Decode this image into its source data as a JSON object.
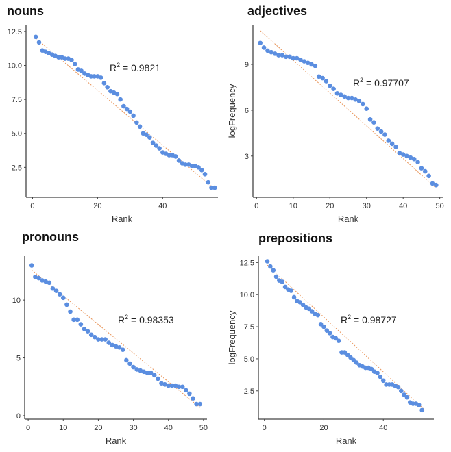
{
  "chart_data": [
    {
      "type": "scatter",
      "title": "nouns",
      "xlabel": "Rank",
      "ylabel": "",
      "xlim": [
        -2,
        57
      ],
      "ylim": [
        0.3,
        13.0
      ],
      "xticks": [
        0,
        20,
        40
      ],
      "yticks": [
        "2.5",
        "5.0",
        "7.5",
        "10.0",
        "12.5"
      ],
      "annotation": {
        "text_base": "R",
        "sup": "2",
        "text_rest": " = 0.9821"
      },
      "trend": {
        "x0": 1,
        "y0": 12.0,
        "x1": 56,
        "y1": 0.9
      },
      "points": [
        [
          1,
          12.1
        ],
        [
          2,
          11.7
        ],
        [
          3,
          11.1
        ],
        [
          4,
          11.0
        ],
        [
          5,
          10.9
        ],
        [
          6,
          10.8
        ],
        [
          7,
          10.7
        ],
        [
          8,
          10.6
        ],
        [
          9,
          10.6
        ],
        [
          10,
          10.5
        ],
        [
          11,
          10.5
        ],
        [
          12,
          10.4
        ],
        [
          13,
          10.1
        ],
        [
          14,
          9.7
        ],
        [
          15,
          9.6
        ],
        [
          16,
          9.4
        ],
        [
          17,
          9.3
        ],
        [
          18,
          9.2
        ],
        [
          19,
          9.2
        ],
        [
          20,
          9.2
        ],
        [
          21,
          9.1
        ],
        [
          22,
          8.7
        ],
        [
          23,
          8.4
        ],
        [
          24,
          8.1
        ],
        [
          25,
          8.0
        ],
        [
          26,
          7.9
        ],
        [
          27,
          7.5
        ],
        [
          28,
          7.0
        ],
        [
          29,
          6.8
        ],
        [
          30,
          6.6
        ],
        [
          31,
          6.3
        ],
        [
          32,
          5.8
        ],
        [
          33,
          5.5
        ],
        [
          34,
          5.0
        ],
        [
          35,
          4.9
        ],
        [
          36,
          4.7
        ],
        [
          37,
          4.3
        ],
        [
          38,
          4.1
        ],
        [
          39,
          3.9
        ],
        [
          40,
          3.6
        ],
        [
          41,
          3.5
        ],
        [
          42,
          3.4
        ],
        [
          43,
          3.4
        ],
        [
          44,
          3.3
        ],
        [
          45,
          3.0
        ],
        [
          46,
          2.8
        ],
        [
          47,
          2.7
        ],
        [
          48,
          2.7
        ],
        [
          49,
          2.6
        ],
        [
          50,
          2.6
        ],
        [
          51,
          2.5
        ],
        [
          52,
          2.3
        ],
        [
          53,
          2.0
        ],
        [
          54,
          1.4
        ],
        [
          55,
          1.0
        ],
        [
          56,
          1.0
        ]
      ]
    },
    {
      "type": "scatter",
      "title": "adjectives",
      "xlabel": "Rank",
      "ylabel": "logFrequency",
      "xlim": [
        -1,
        51
      ],
      "ylim": [
        0.3,
        11.6
      ],
      "xticks": [
        0,
        10,
        20,
        30,
        40,
        50
      ],
      "yticks": [
        "3",
        "6",
        "9"
      ],
      "annotation": {
        "text_base": "R",
        "sup": "2",
        "text_rest": " = 0.97707"
      },
      "trend": {
        "x0": 1,
        "y0": 11.2,
        "x1": 49,
        "y1": 0.9
      },
      "points": [
        [
          1,
          10.4
        ],
        [
          2,
          10.1
        ],
        [
          3,
          9.9
        ],
        [
          4,
          9.8
        ],
        [
          5,
          9.7
        ],
        [
          6,
          9.6
        ],
        [
          7,
          9.6
        ],
        [
          8,
          9.5
        ],
        [
          9,
          9.5
        ],
        [
          10,
          9.4
        ],
        [
          11,
          9.4
        ],
        [
          12,
          9.3
        ],
        [
          13,
          9.2
        ],
        [
          14,
          9.1
        ],
        [
          15,
          9.0
        ],
        [
          16,
          8.9
        ],
        [
          17,
          8.2
        ],
        [
          18,
          8.1
        ],
        [
          19,
          7.9
        ],
        [
          20,
          7.6
        ],
        [
          21,
          7.4
        ],
        [
          22,
          7.1
        ],
        [
          23,
          7.0
        ],
        [
          24,
          6.9
        ],
        [
          25,
          6.8
        ],
        [
          26,
          6.8
        ],
        [
          27,
          6.7
        ],
        [
          28,
          6.6
        ],
        [
          29,
          6.4
        ],
        [
          30,
          6.1
        ],
        [
          31,
          5.4
        ],
        [
          32,
          5.2
        ],
        [
          33,
          4.8
        ],
        [
          34,
          4.6
        ],
        [
          35,
          4.4
        ],
        [
          36,
          4.0
        ],
        [
          37,
          3.8
        ],
        [
          38,
          3.6
        ],
        [
          39,
          3.2
        ],
        [
          40,
          3.1
        ],
        [
          41,
          3.0
        ],
        [
          42,
          2.9
        ],
        [
          43,
          2.8
        ],
        [
          44,
          2.6
        ],
        [
          45,
          2.2
        ],
        [
          46,
          2.0
        ],
        [
          47,
          1.7
        ],
        [
          48,
          1.2
        ],
        [
          49,
          1.1
        ]
      ]
    },
    {
      "type": "scatter",
      "title": "pronouns",
      "xlabel": "Rank",
      "ylabel": "",
      "xlim": [
        -1,
        51
      ],
      "ylim": [
        -0.3,
        13.8
      ],
      "xticks": [
        0,
        10,
        20,
        30,
        40,
        50
      ],
      "yticks": [
        "0",
        "5",
        "10"
      ],
      "annotation": {
        "text_base": "R",
        "sup": "2",
        "text_rest": " = 0.98353"
      },
      "trend": {
        "x0": 1,
        "y0": 12.6,
        "x1": 49,
        "y1": 0.7
      },
      "points": [
        [
          1,
          13.0
        ],
        [
          2,
          12.0
        ],
        [
          3,
          11.9
        ],
        [
          4,
          11.7
        ],
        [
          5,
          11.6
        ],
        [
          6,
          11.5
        ],
        [
          7,
          11.0
        ],
        [
          8,
          10.8
        ],
        [
          9,
          10.5
        ],
        [
          10,
          10.2
        ],
        [
          11,
          9.6
        ],
        [
          12,
          9.0
        ],
        [
          13,
          8.3
        ],
        [
          14,
          8.3
        ],
        [
          15,
          7.9
        ],
        [
          16,
          7.5
        ],
        [
          17,
          7.3
        ],
        [
          18,
          7.0
        ],
        [
          19,
          6.8
        ],
        [
          20,
          6.6
        ],
        [
          21,
          6.6
        ],
        [
          22,
          6.6
        ],
        [
          23,
          6.3
        ],
        [
          24,
          6.1
        ],
        [
          25,
          6.0
        ],
        [
          26,
          5.9
        ],
        [
          27,
          5.7
        ],
        [
          28,
          4.8
        ],
        [
          29,
          4.5
        ],
        [
          30,
          4.2
        ],
        [
          31,
          4.0
        ],
        [
          32,
          3.9
        ],
        [
          33,
          3.8
        ],
        [
          34,
          3.7
        ],
        [
          35,
          3.7
        ],
        [
          36,
          3.5
        ],
        [
          37,
          3.2
        ],
        [
          38,
          2.8
        ],
        [
          39,
          2.7
        ],
        [
          40,
          2.6
        ],
        [
          41,
          2.6
        ],
        [
          42,
          2.6
        ],
        [
          43,
          2.5
        ],
        [
          44,
          2.5
        ],
        [
          45,
          2.2
        ],
        [
          46,
          1.9
        ],
        [
          47,
          1.5
        ],
        [
          48,
          1.0
        ],
        [
          49,
          1.0
        ]
      ]
    },
    {
      "type": "scatter",
      "title": "prepositions",
      "xlabel": "Rank",
      "ylabel": "logFrequency",
      "xlim": [
        -2,
        57
      ],
      "ylim": [
        0.3,
        13.0
      ],
      "xticks": [
        0,
        20,
        40
      ],
      "yticks": [
        "2.5",
        "5.0",
        "7.5",
        "10.0",
        "12.5"
      ],
      "annotation": {
        "text_base": "R",
        "sup": "2",
        "text_rest": " = 0.98727"
      },
      "trend": {
        "x0": 1,
        "y0": 12.3,
        "x1": 54,
        "y1": 1.0
      },
      "points": [
        [
          1,
          12.6
        ],
        [
          2,
          12.2
        ],
        [
          3,
          11.9
        ],
        [
          4,
          11.4
        ],
        [
          5,
          11.1
        ],
        [
          6,
          11.0
        ],
        [
          7,
          10.6
        ],
        [
          8,
          10.4
        ],
        [
          9,
          10.3
        ],
        [
          10,
          9.8
        ],
        [
          11,
          9.5
        ],
        [
          12,
          9.4
        ],
        [
          13,
          9.2
        ],
        [
          14,
          9.0
        ],
        [
          15,
          8.9
        ],
        [
          16,
          8.7
        ],
        [
          17,
          8.5
        ],
        [
          18,
          8.4
        ],
        [
          19,
          7.7
        ],
        [
          20,
          7.5
        ],
        [
          21,
          7.2
        ],
        [
          22,
          7.0
        ],
        [
          23,
          6.7
        ],
        [
          24,
          6.6
        ],
        [
          25,
          6.4
        ],
        [
          26,
          5.5
        ],
        [
          27,
          5.5
        ],
        [
          28,
          5.3
        ],
        [
          29,
          5.1
        ],
        [
          30,
          4.9
        ],
        [
          31,
          4.7
        ],
        [
          32,
          4.5
        ],
        [
          33,
          4.4
        ],
        [
          34,
          4.3
        ],
        [
          35,
          4.3
        ],
        [
          36,
          4.2
        ],
        [
          37,
          4.0
        ],
        [
          38,
          3.9
        ],
        [
          39,
          3.6
        ],
        [
          40,
          3.3
        ],
        [
          41,
          3.0
        ],
        [
          42,
          3.0
        ],
        [
          43,
          3.0
        ],
        [
          44,
          2.9
        ],
        [
          45,
          2.8
        ],
        [
          46,
          2.5
        ],
        [
          47,
          2.2
        ],
        [
          48,
          2.0
        ],
        [
          49,
          1.6
        ],
        [
          50,
          1.5
        ],
        [
          51,
          1.5
        ],
        [
          52,
          1.4
        ],
        [
          53,
          1.0
        ]
      ]
    }
  ]
}
